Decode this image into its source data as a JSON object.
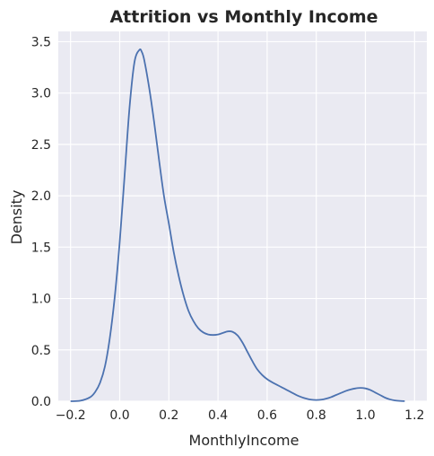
{
  "chart_data": {
    "type": "line",
    "subtype": "kde-density",
    "title": "Attrition vs Monthly Income",
    "xlabel": "MonthlyIncome",
    "ylabel": "Density",
    "xlim": [
      -0.25,
      1.25
    ],
    "ylim": [
      0,
      3.6
    ],
    "x_ticks": [
      -0.2,
      0.0,
      0.2,
      0.4,
      0.6,
      0.8,
      1.0,
      1.2
    ],
    "y_ticks": [
      0.0,
      0.5,
      1.0,
      1.5,
      2.0,
      2.5,
      3.0,
      3.5
    ],
    "x_tick_labels": [
      "−0.2",
      "0.0",
      "0.2",
      "0.4",
      "0.6",
      "0.8",
      "1.0",
      "1.2"
    ],
    "y_tick_labels": [
      "0.0",
      "0.5",
      "1.0",
      "1.5",
      "2.0",
      "2.5",
      "3.0",
      "3.5"
    ],
    "grid": true,
    "legend": "none",
    "colors": {
      "background": "#eaeaf2",
      "grid": "#ffffff",
      "line": "#4c72b0",
      "text": "#262626"
    },
    "series": [
      {
        "x": [
          -0.2,
          -0.16,
          -0.12,
          -0.1,
          -0.08,
          -0.06,
          -0.04,
          -0.02,
          0.0,
          0.02,
          0.04,
          0.06,
          0.08,
          0.09,
          0.1,
          0.12,
          0.14,
          0.16,
          0.18,
          0.2,
          0.22,
          0.24,
          0.26,
          0.28,
          0.3,
          0.32,
          0.34,
          0.36,
          0.38,
          0.4,
          0.42,
          0.44,
          0.46,
          0.48,
          0.5,
          0.52,
          0.54,
          0.56,
          0.58,
          0.6,
          0.62,
          0.64,
          0.66,
          0.68,
          0.7,
          0.72,
          0.74,
          0.76,
          0.78,
          0.8,
          0.82,
          0.84,
          0.86,
          0.88,
          0.9,
          0.92,
          0.94,
          0.96,
          0.98,
          1.0,
          1.02,
          1.04,
          1.06,
          1.08,
          1.1,
          1.12,
          1.14,
          1.16
        ],
        "y": [
          0.0,
          0.005,
          0.04,
          0.09,
          0.18,
          0.34,
          0.62,
          1.02,
          1.55,
          2.2,
          2.86,
          3.3,
          3.42,
          3.4,
          3.32,
          3.05,
          2.72,
          2.35,
          2.0,
          1.73,
          1.45,
          1.22,
          1.03,
          0.88,
          0.78,
          0.71,
          0.67,
          0.65,
          0.645,
          0.65,
          0.665,
          0.68,
          0.675,
          0.64,
          0.57,
          0.48,
          0.39,
          0.31,
          0.255,
          0.215,
          0.185,
          0.16,
          0.135,
          0.11,
          0.085,
          0.06,
          0.04,
          0.025,
          0.015,
          0.012,
          0.015,
          0.025,
          0.04,
          0.06,
          0.08,
          0.1,
          0.115,
          0.125,
          0.13,
          0.125,
          0.11,
          0.085,
          0.06,
          0.035,
          0.018,
          0.008,
          0.003,
          0.001
        ]
      }
    ]
  }
}
